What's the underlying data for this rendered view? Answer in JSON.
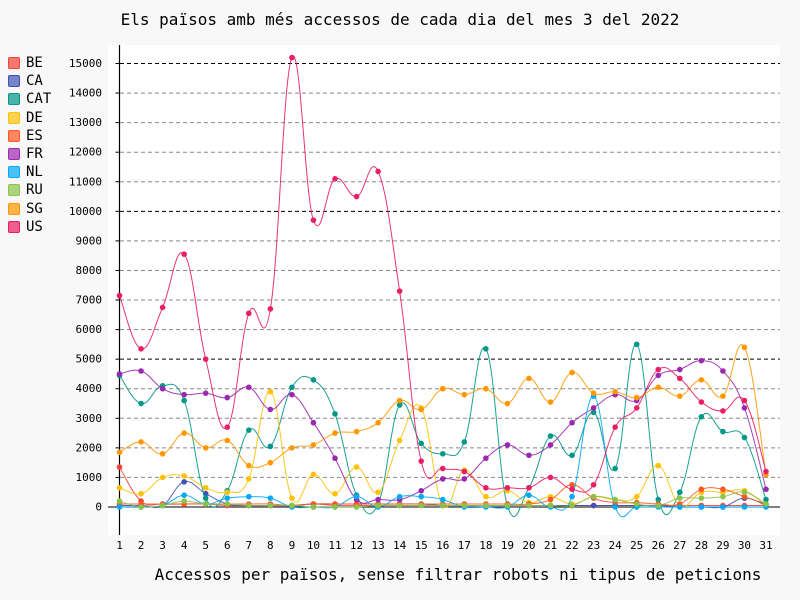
{
  "chart_data": {
    "type": "line",
    "title": "Els països amb més accessos de cada dia del mes 3 del 2022",
    "xlabel": "Accessos per països, sense filtrar robots ni tipus de peticions",
    "ylabel": "",
    "x": [
      1,
      2,
      3,
      4,
      5,
      6,
      7,
      8,
      9,
      10,
      11,
      12,
      13,
      14,
      15,
      16,
      17,
      18,
      19,
      20,
      21,
      22,
      23,
      24,
      25,
      26,
      27,
      28,
      29,
      30,
      31
    ],
    "xlim": [
      1,
      31
    ],
    "ylim": [
      -800,
      15600
    ],
    "yticks": [
      0,
      1000,
      2000,
      3000,
      4000,
      5000,
      6000,
      7000,
      8000,
      9000,
      10000,
      11000,
      12000,
      13000,
      14000,
      15000
    ],
    "grid": "horizontal dashed",
    "legend_position": "left",
    "series": [
      {
        "name": "BE",
        "color": "#F44336",
        "values": [
          1350,
          200,
          100,
          100,
          100,
          50,
          50,
          50,
          50,
          100,
          50,
          50,
          50,
          50,
          50,
          50,
          50,
          50,
          50,
          50,
          50,
          50,
          50,
          50,
          50,
          50,
          50,
          50,
          50,
          50,
          50
        ]
      },
      {
        "name": "CA",
        "color": "#3F51B5",
        "values": [
          50,
          50,
          50,
          850,
          450,
          100,
          50,
          50,
          50,
          100,
          100,
          100,
          100,
          100,
          100,
          50,
          50,
          50,
          50,
          50,
          50,
          50,
          50,
          50,
          50,
          50,
          0,
          0,
          0,
          300,
          50
        ]
      },
      {
        "name": "CAT",
        "color": "#009688",
        "values": [
          4450,
          3500,
          4100,
          3600,
          300,
          550,
          2600,
          2050,
          4050,
          4300,
          3150,
          400,
          100,
          3450,
          2150,
          1800,
          2200,
          5350,
          50,
          650,
          2400,
          1750,
          3200,
          1300,
          5500,
          250,
          500,
          3050,
          2550,
          2350,
          250
        ]
      },
      {
        "name": "DE",
        "color": "#FFC107",
        "values": [
          650,
          450,
          1000,
          1050,
          650,
          500,
          950,
          3900,
          300,
          1100,
          450,
          1350,
          500,
          2250,
          3350,
          50,
          1250,
          350,
          550,
          150,
          350,
          100,
          350,
          250,
          350,
          1400,
          50,
          500,
          500,
          550,
          50
        ]
      },
      {
        "name": "ES",
        "color": "#FF5722",
        "values": [
          100,
          100,
          100,
          100,
          100,
          100,
          100,
          100,
          50,
          100,
          100,
          100,
          100,
          100,
          100,
          100,
          100,
          100,
          100,
          100,
          250,
          750,
          300,
          150,
          150,
          100,
          100,
          600,
          600,
          350,
          100
        ]
      },
      {
        "name": "FR",
        "color": "#9C27B0",
        "values": [
          4500,
          4600,
          4000,
          3800,
          3850,
          3700,
          4050,
          3300,
          3800,
          2850,
          1650,
          250,
          250,
          250,
          550,
          950,
          950,
          1650,
          2100,
          1750,
          2100,
          2850,
          3350,
          3800,
          3600,
          4450,
          4650,
          4950,
          4600,
          3350,
          600
        ]
      },
      {
        "name": "NL",
        "color": "#03A9F4",
        "values": [
          0,
          0,
          50,
          400,
          100,
          300,
          350,
          300,
          0,
          0,
          0,
          350,
          0,
          350,
          350,
          250,
          0,
          0,
          0,
          400,
          0,
          350,
          3750,
          0,
          0,
          0,
          0,
          0,
          0,
          0,
          0
        ]
      },
      {
        "name": "RU",
        "color": "#8BC34A",
        "values": [
          200,
          0,
          50,
          200,
          100,
          100,
          50,
          50,
          50,
          0,
          0,
          0,
          50,
          50,
          50,
          50,
          50,
          50,
          50,
          50,
          50,
          50,
          350,
          250,
          100,
          50,
          300,
          300,
          350,
          500,
          100
        ]
      },
      {
        "name": "SG",
        "color": "#FF9800",
        "values": [
          1850,
          2200,
          1800,
          2500,
          2000,
          2250,
          1400,
          1500,
          2000,
          2100,
          2500,
          2550,
          2850,
          3600,
          3300,
          4000,
          3800,
          4000,
          3500,
          4350,
          3550,
          4550,
          3850,
          3900,
          3700,
          4050,
          3750,
          4300,
          3750,
          5400,
          1100
        ]
      },
      {
        "name": "US",
        "color": "#E91E63",
        "values": [
          7150,
          5350,
          6750,
          8550,
          5000,
          2700,
          6550,
          6700,
          15200,
          9700,
          11100,
          10500,
          11350,
          7300,
          1550,
          1300,
          1200,
          650,
          650,
          650,
          1000,
          600,
          750,
          2700,
          3350,
          4650,
          4350,
          3550,
          3250,
          3600,
          1200
        ]
      }
    ]
  }
}
